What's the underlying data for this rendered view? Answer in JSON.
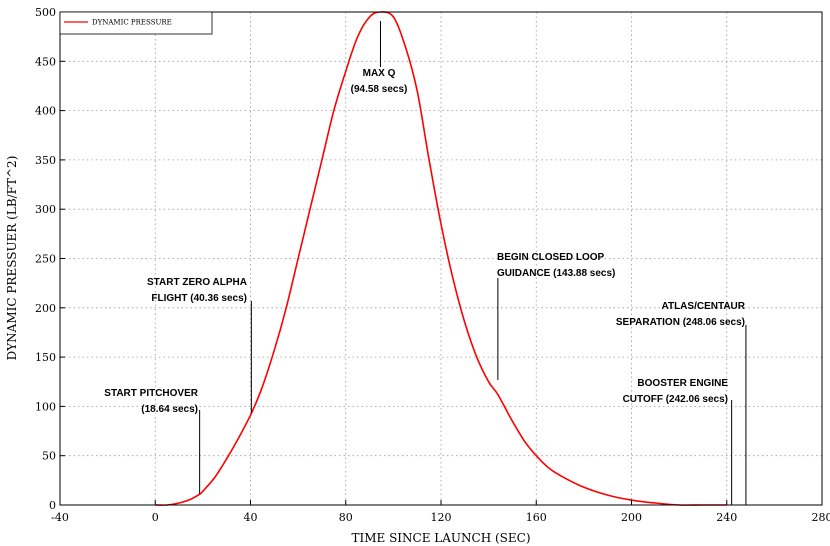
{
  "chart_data": {
    "type": "line",
    "title": "",
    "xlabel": "TIME SINCE LAUNCH (SEC)",
    "ylabel": "DYNAMIC PRESSUER (LB/FT^2)",
    "xlim": [
      -40,
      280
    ],
    "ylim": [
      0,
      500
    ],
    "xticks": [
      -40,
      0,
      40,
      80,
      120,
      160,
      200,
      240,
      280
    ],
    "yticks": [
      0,
      50,
      100,
      150,
      200,
      250,
      300,
      350,
      400,
      450,
      500
    ],
    "grid": true,
    "legend_placement": "top-left",
    "series": [
      {
        "name": "DYNAMIC PRESSURE",
        "color": "#ff0000",
        "x": [
          0,
          5,
          10,
          15,
          18.64,
          20,
          25,
          30,
          35,
          40.36,
          45,
          50,
          55,
          60,
          65,
          70,
          75,
          80,
          85,
          90,
          94.58,
          100,
          105,
          110,
          115,
          120,
          125,
          130,
          135,
          140,
          143.88,
          150,
          155,
          160,
          165,
          170,
          180,
          190,
          200,
          210,
          220,
          230,
          240
        ],
        "y": [
          0,
          0,
          2,
          6,
          11,
          14,
          28,
          47,
          68,
          93,
          120,
          157,
          200,
          250,
          300,
          350,
          400,
          440,
          475,
          495,
          500,
          495,
          465,
          420,
          350,
          285,
          230,
          185,
          150,
          125,
          112,
          85,
          65,
          50,
          38,
          30,
          18,
          10,
          5,
          2,
          0,
          0,
          0
        ]
      }
    ],
    "annotations": [
      {
        "lines": [
          "START PITCHOVER",
          "(18.64 secs)"
        ],
        "x": 18.64
      },
      {
        "lines": [
          "START ZERO ALPHA",
          "FLIGHT (40.36 secs)"
        ],
        "x": 40.36
      },
      {
        "lines": [
          "MAX Q",
          "(94.58 secs)"
        ],
        "x": 94.58
      },
      {
        "lines": [
          "BEGIN CLOSED LOOP",
          "GUIDANCE (143.88 secs)"
        ],
        "x": 143.88
      },
      {
        "lines": [
          "BOOSTER ENGINE",
          "CUTOFF (242.06 secs)"
        ],
        "x": 242.06
      },
      {
        "lines": [
          "ATLAS/CENTAUR",
          "SEPARATION (248.06 secs)"
        ],
        "x": 248.06
      }
    ]
  }
}
